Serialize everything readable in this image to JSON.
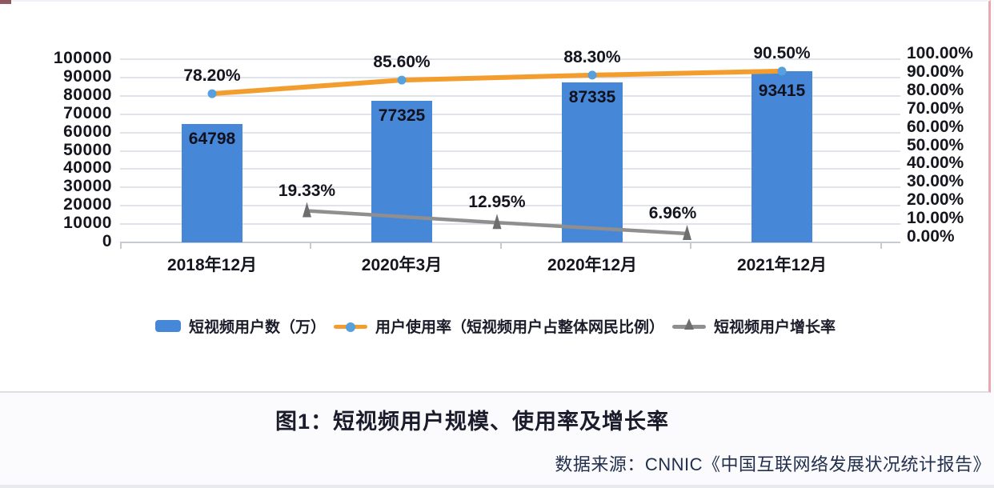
{
  "chart_data": {
    "type": "bar",
    "subtype": "combo-bar-line",
    "categories": [
      "2018年12月",
      "2020年3月",
      "2020年12月",
      "2021年12月"
    ],
    "series": [
      {
        "name": "短视频用户数（万）",
        "type": "bar",
        "axis": "left",
        "values": [
          64798,
          77325,
          87335,
          93415
        ],
        "labels": [
          "64798",
          "77325",
          "87335",
          "93415"
        ],
        "color": "#4687D7"
      },
      {
        "name": "用户使用率（短视频用户占整体网民比例）",
        "type": "line",
        "axis": "right",
        "values": [
          78.2,
          85.6,
          88.3,
          90.5
        ],
        "labels": [
          "78.20%",
          "85.60%",
          "88.30%",
          "90.50%"
        ],
        "color": "#F49D2F",
        "marker": "circle",
        "marker_color": "#57A0DD"
      },
      {
        "name": "短视频用户增长率",
        "type": "line",
        "axis": "right",
        "position": "between-categories",
        "values": [
          19.33,
          12.95,
          6.96
        ],
        "labels": [
          "19.33%",
          "12.95%",
          "6.96%"
        ],
        "color": "#8F8F8F",
        "marker": "triangle",
        "marker_color": "#6E6E6E"
      }
    ],
    "left_axis": {
      "min": 0,
      "max": 100000,
      "step": 10000,
      "ticks": [
        "100000",
        "90000",
        "80000",
        "70000",
        "60000",
        "50000",
        "40000",
        "30000",
        "20000",
        "10000",
        "0"
      ]
    },
    "right_axis": {
      "min": 0,
      "max": 100,
      "step": 10,
      "ticks": [
        "100.00%",
        "90.00%",
        "80.00%",
        "70.00%",
        "60.00%",
        "50.00%",
        "40.00%",
        "30.00%",
        "20.00%",
        "10.00%",
        "0.00%"
      ]
    },
    "grid": true,
    "legend_position": "bottom",
    "title": "图1：短视频用户规模、使用率及增长率"
  },
  "caption": "图1：短视频用户规模、使用率及增长率",
  "source": "数据来源：CNNIC《中国互联网络发展状况统计报告》",
  "colors": {
    "bar_blue": "#4687D7",
    "usage_orange": "#F49D2F",
    "usage_dot_blue": "#57A0DD",
    "growth_gray": "#8F8F8F",
    "text_dark": "#15151F",
    "gridline": "#E0E3E9",
    "scan_mark_red": "#D6626C"
  }
}
